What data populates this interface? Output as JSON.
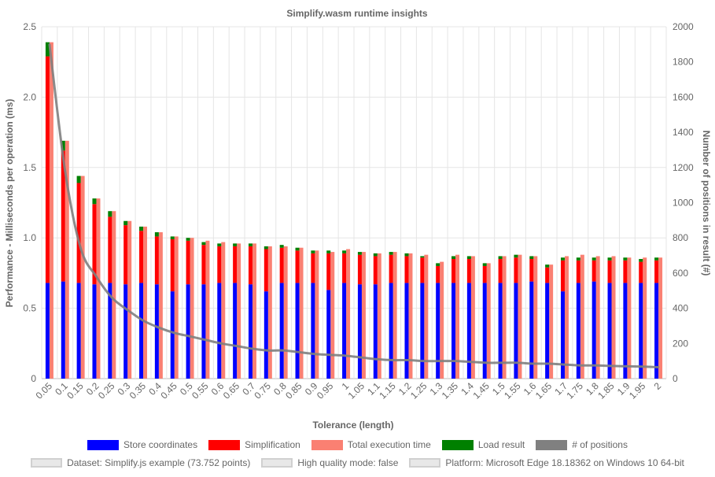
{
  "chart_data": {
    "type": "bar",
    "title": "Simplify.wasm runtime insights",
    "xlabel": "Tolerance (length)",
    "ylabel": "Performance - Milliseconds per operation (ms)",
    "y2label": "Number of positions in result (#)",
    "ylim": [
      0,
      2.5
    ],
    "y2lim": [
      0,
      2000
    ],
    "yticks": [
      "0",
      "0.5",
      "1.0",
      "1.5",
      "2.0",
      "2.5"
    ],
    "y2ticks": [
      "0",
      "200",
      "400",
      "600",
      "800",
      "1000",
      "1200",
      "1400",
      "1600",
      "1800",
      "2000"
    ],
    "grid": true,
    "categories": [
      "0.05",
      "0.1",
      "0.15",
      "0.2",
      "0.25",
      "0.3",
      "0.35",
      "0.4",
      "0.45",
      "0.5",
      "0.55",
      "0.6",
      "0.65",
      "0.7",
      "0.75",
      "0.8",
      "0.85",
      "0.9",
      "0.95",
      "1",
      "1.05",
      "1.1",
      "1.15",
      "1.2",
      "1.25",
      "1.3",
      "1.35",
      "1.4",
      "1.45",
      "1.5",
      "1.55",
      "1.6",
      "1.65",
      "1.7",
      "1.75",
      "1.8",
      "1.85",
      "1.9",
      "1.95",
      "2"
    ],
    "series": [
      {
        "name": "Store coordinates",
        "color": "#0000ff",
        "stack": "wasm",
        "values": [
          0.68,
          0.69,
          0.68,
          0.67,
          0.68,
          0.67,
          0.68,
          0.67,
          0.62,
          0.67,
          0.67,
          0.68,
          0.68,
          0.67,
          0.62,
          0.68,
          0.68,
          0.68,
          0.63,
          0.68,
          0.67,
          0.67,
          0.68,
          0.68,
          0.68,
          0.68,
          0.68,
          0.68,
          0.68,
          0.68,
          0.68,
          0.69,
          0.68,
          0.62,
          0.68,
          0.69,
          0.68,
          0.68,
          0.68,
          0.68
        ]
      },
      {
        "name": "Simplification",
        "color": "#ff0000",
        "stack": "wasm",
        "values": [
          1.61,
          0.93,
          0.71,
          0.57,
          0.47,
          0.42,
          0.37,
          0.34,
          0.37,
          0.31,
          0.28,
          0.26,
          0.26,
          0.27,
          0.3,
          0.25,
          0.23,
          0.21,
          0.26,
          0.21,
          0.21,
          0.2,
          0.2,
          0.19,
          0.18,
          0.12,
          0.17,
          0.17,
          0.12,
          0.17,
          0.18,
          0.16,
          0.11,
          0.22,
          0.16,
          0.15,
          0.16,
          0.16,
          0.15,
          0.16
        ]
      },
      {
        "name": "Load result",
        "color": "#008000",
        "stack": "wasm",
        "values": [
          0.1,
          0.07,
          0.05,
          0.04,
          0.04,
          0.03,
          0.03,
          0.03,
          0.02,
          0.02,
          0.02,
          0.02,
          0.02,
          0.02,
          0.02,
          0.02,
          0.02,
          0.02,
          0.02,
          0.02,
          0.02,
          0.02,
          0.02,
          0.02,
          0.01,
          0.02,
          0.02,
          0.02,
          0.02,
          0.02,
          0.02,
          0.02,
          0.02,
          0.02,
          0.02,
          0.02,
          0.02,
          0.02,
          0.02,
          0.02
        ]
      },
      {
        "name": "Total execution time",
        "color": "#fa8072",
        "stack": "total",
        "values": [
          2.39,
          1.69,
          1.44,
          1.28,
          1.19,
          1.12,
          1.08,
          1.04,
          1.01,
          1.0,
          0.98,
          0.97,
          0.96,
          0.96,
          0.94,
          0.94,
          0.93,
          0.91,
          0.9,
          0.92,
          0.9,
          0.89,
          0.9,
          0.89,
          0.88,
          0.83,
          0.88,
          0.87,
          0.82,
          0.87,
          0.88,
          0.87,
          0.81,
          0.87,
          0.88,
          0.87,
          0.87,
          0.86,
          0.86,
          0.86
        ]
      },
      {
        "name": "# of positions",
        "color": "#808080",
        "type": "line",
        "axis": "right",
        "values": [
          1900,
          1180,
          740,
          580,
          460,
          390,
          330,
          290,
          260,
          240,
          220,
          200,
          185,
          170,
          160,
          160,
          150,
          140,
          135,
          130,
          120,
          110,
          105,
          105,
          100,
          100,
          100,
          95,
          90,
          90,
          90,
          85,
          85,
          80,
          75,
          75,
          72,
          70,
          68,
          65
        ]
      }
    ]
  },
  "legend": {
    "series": [
      {
        "label": "Store coordinates",
        "color": "#0000ff"
      },
      {
        "label": "Simplification",
        "color": "#ff0000"
      },
      {
        "label": "Total execution time",
        "color": "#fa8072"
      },
      {
        "label": "Load result",
        "color": "#008000"
      },
      {
        "label": "# of positions",
        "color": "#808080"
      }
    ],
    "info": [
      {
        "label": "Dataset: Simplify.js example (73.752 points)"
      },
      {
        "label": "High quality mode: false"
      },
      {
        "label": "Platform: Microsoft Edge 18.18362 on Windows 10 64-bit"
      }
    ]
  }
}
